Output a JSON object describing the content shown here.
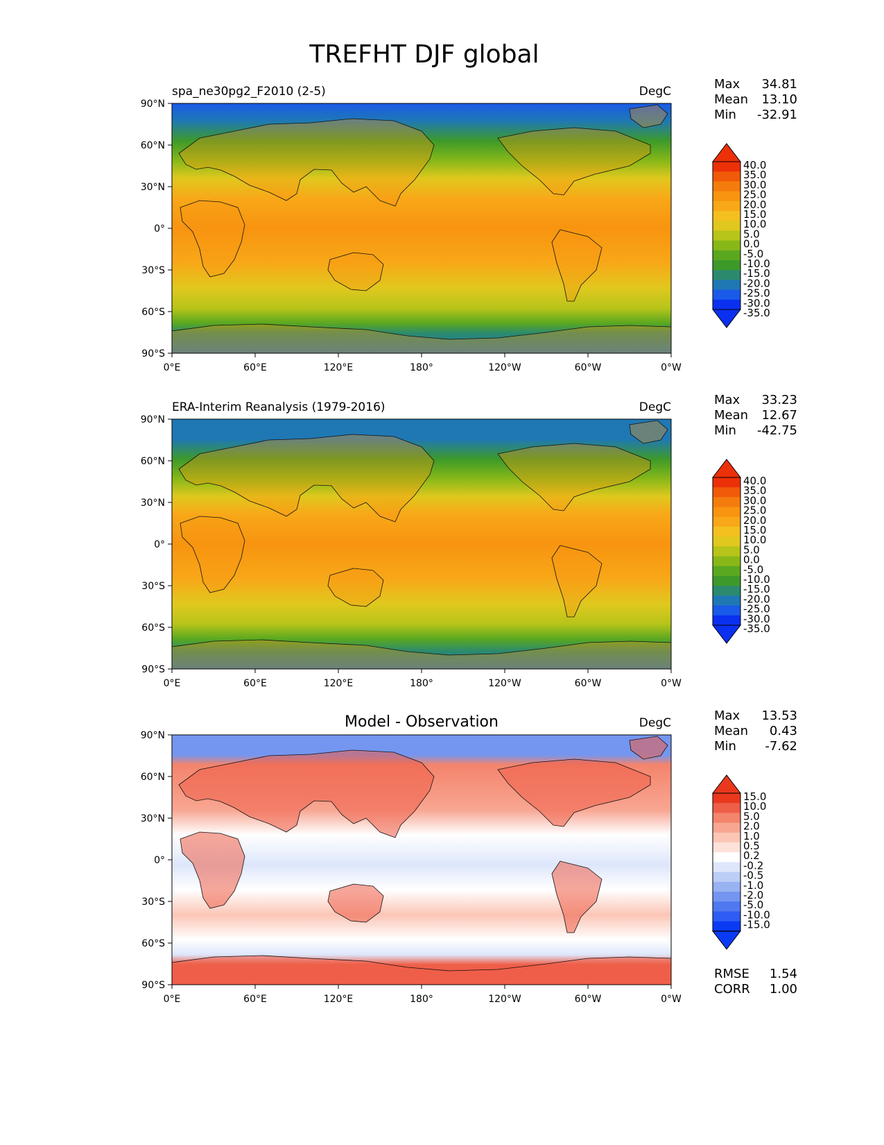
{
  "title": "TREFHT DJF global",
  "lat_ticks": [
    "90°N",
    "60°N",
    "30°N",
    "0°",
    "30°S",
    "60°S",
    "90°S"
  ],
  "lon_ticks": [
    "0°E",
    "60°E",
    "120°E",
    "180°",
    "120°W",
    "60°W",
    "0°W"
  ],
  "stat_labels": {
    "max": "Max",
    "mean": "Mean",
    "min": "Min",
    "rmse": "RMSE",
    "corr": "CORR"
  },
  "colors": {
    "abs_levels": [
      "#0a30f0",
      "#1a5ae8",
      "#1f78b4",
      "#2b8a6e",
      "#3d9a2a",
      "#5aa820",
      "#88b818",
      "#b7c41a",
      "#e0c81e",
      "#f4c020",
      "#f8a818",
      "#f89410",
      "#f47c0c",
      "#f05a08",
      "#ec3008"
    ],
    "diff_levels": [
      "#0a3af4",
      "#2e5cf4",
      "#5078f0",
      "#7496f0",
      "#98b2f2",
      "#bccdf6",
      "#dde6fb",
      "#ffffff",
      "#fde2da",
      "#fbc6b6",
      "#f8a692",
      "#f4846c",
      "#ef5e48",
      "#e9381e"
    ]
  },
  "panels": [
    {
      "id": "test",
      "title": "spa_ne30pg2_F2010 (2-5)",
      "units": "DegC",
      "stats": {
        "max": "34.81",
        "mean": "13.10",
        "min": "-32.91"
      },
      "colorbar": {
        "type": "absolute",
        "labels": [
          "40.0",
          "35.0",
          "30.0",
          "25.0",
          "20.0",
          "15.0",
          "10.0",
          "5.0",
          "0.0",
          "-5.0",
          "-10.0",
          "-15.0",
          "-20.0",
          "-25.0",
          "-30.0",
          "-35.0"
        ]
      }
    },
    {
      "id": "reference",
      "title": "ERA-Interim Reanalysis (1979-2016)",
      "units": "DegC",
      "stats": {
        "max": "33.23",
        "mean": "12.67",
        "min": "-42.75"
      },
      "colorbar": {
        "type": "absolute",
        "labels": [
          "40.0",
          "35.0",
          "30.0",
          "25.0",
          "20.0",
          "15.0",
          "10.0",
          "5.0",
          "0.0",
          "-5.0",
          "-10.0",
          "-15.0",
          "-20.0",
          "-25.0",
          "-30.0",
          "-35.0"
        ]
      }
    },
    {
      "id": "difference",
      "title": "Model - Observation",
      "units": "DegC",
      "stats": {
        "max": "13.53",
        "mean": "0.43",
        "min": "-7.62",
        "rmse": "1.54",
        "corr": "1.00"
      },
      "colorbar": {
        "type": "difference",
        "labels": [
          "15.0",
          "10.0",
          "5.0",
          "2.0",
          "1.0",
          "0.5",
          "0.2",
          "-0.2",
          "-0.5",
          "-1.0",
          "-2.0",
          "-5.0",
          "-10.0",
          "-15.0"
        ]
      }
    }
  ]
}
